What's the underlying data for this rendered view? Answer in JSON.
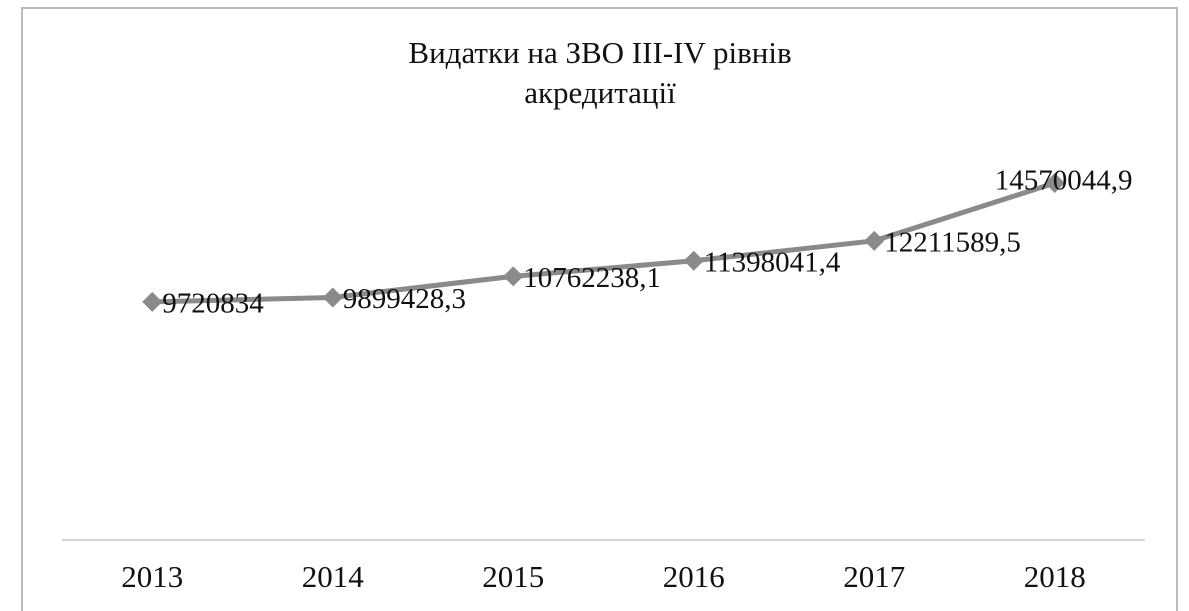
{
  "chart_data": {
    "type": "line",
    "title": [
      "Видатки на ЗВО ІІІ-ІV рівнів",
      "акредитації"
    ],
    "categories": [
      "2013",
      "2014",
      "2015",
      "2016",
      "2017",
      "2018"
    ],
    "series": [
      {
        "color": "#8a8a8a",
        "values": [
          9720834,
          9899428.3,
          10762238.1,
          11398041.4,
          12211589.5,
          14570044.9
        ],
        "value_labels": [
          "9720834",
          "9899428,3",
          "10762238,1",
          "11398041,4",
          "12211589,5",
          "14570044,9"
        ]
      }
    ],
    "ylim": [
      0,
      16000000
    ]
  }
}
